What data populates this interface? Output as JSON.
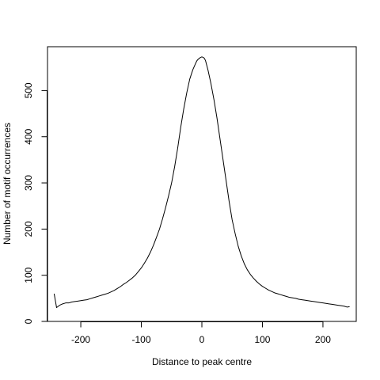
{
  "chart_data": {
    "type": "line",
    "title": "",
    "xlabel": "Distance to peak centre",
    "ylabel": "Number of motif occurrences",
    "xlim": [
      -255,
      255
    ],
    "ylim": [
      0,
      595
    ],
    "x_ticks": [
      -200,
      -100,
      0,
      100,
      200
    ],
    "y_ticks": [
      0,
      100,
      200,
      300,
      400,
      500
    ],
    "grid": false,
    "legend": "none",
    "line_color": "#000000",
    "series": [
      {
        "x": [
          -244,
          -240,
          -235,
          -230,
          -225,
          -220,
          -215,
          -210,
          -205,
          -200,
          -195,
          -190,
          -185,
          -180,
          -175,
          -170,
          -165,
          -160,
          -155,
          -150,
          -145,
          -140,
          -135,
          -130,
          -125,
          -120,
          -115,
          -110,
          -105,
          -100,
          -95,
          -90,
          -85,
          -80,
          -75,
          -70,
          -65,
          -60,
          -55,
          -50,
          -45,
          -40,
          -35,
          -30,
          -25,
          -20,
          -15,
          -10,
          -8,
          -6,
          -4,
          -2,
          0,
          2,
          4,
          6,
          8,
          10,
          15,
          20,
          25,
          30,
          35,
          40,
          45,
          50,
          55,
          60,
          65,
          70,
          75,
          80,
          85,
          90,
          95,
          100,
          105,
          110,
          115,
          120,
          125,
          130,
          135,
          140,
          145,
          150,
          155,
          160,
          165,
          170,
          175,
          180,
          185,
          190,
          195,
          200,
          205,
          210,
          215,
          220,
          225,
          230,
          235,
          240,
          244
        ],
        "values": [
          60,
          30,
          35,
          38,
          40,
          40,
          42,
          43,
          44,
          45,
          46,
          47,
          49,
          51,
          53,
          55,
          57,
          59,
          61,
          64,
          67,
          71,
          75,
          80,
          84,
          89,
          94,
          100,
          108,
          116,
          126,
          137,
          150,
          165,
          182,
          200,
          222,
          246,
          272,
          300,
          335,
          375,
          420,
          460,
          495,
          525,
          545,
          560,
          565,
          568,
          570,
          572,
          573,
          572,
          570,
          565,
          555,
          545,
          515,
          480,
          440,
          395,
          350,
          305,
          260,
          220,
          190,
          163,
          142,
          125,
          112,
          102,
          94,
          87,
          81,
          76,
          72,
          68,
          65,
          62,
          60,
          58,
          56,
          54,
          52,
          51,
          50,
          48,
          47,
          46,
          45,
          44,
          43,
          42,
          41,
          40,
          39,
          38,
          37,
          36,
          35,
          34,
          33,
          31,
          32
        ]
      }
    ]
  }
}
